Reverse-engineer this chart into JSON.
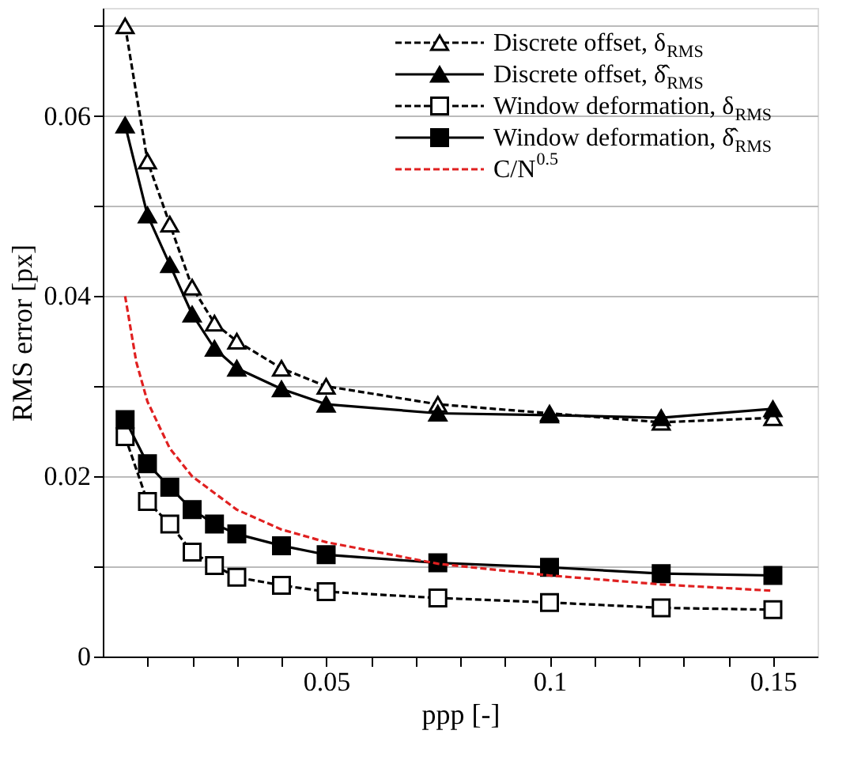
{
  "chart_data": {
    "type": "line",
    "xlabel": "ppp [-]",
    "ylabel": "RMS error [px]",
    "x": [
      0.005,
      0.01,
      0.015,
      0.02,
      0.025,
      0.03,
      0.04,
      0.05,
      0.075,
      0.1,
      0.125,
      0.15
    ],
    "series": [
      {
        "name": "Discrete offset, δ$_{RMS}$",
        "color": "#000000",
        "marker": "triangle",
        "line_style": "dashed",
        "values": [
          0.07,
          0.055,
          0.048,
          0.041,
          0.037,
          0.035,
          0.032,
          0.03,
          0.028,
          0.027,
          0.026,
          0.0265
        ]
      },
      {
        "name": "Discrete offset, δ̂$_{RMS}$",
        "color": "#000000",
        "marker": "triangle",
        "line_style": "solid",
        "values": [
          0.059,
          0.049,
          0.0435,
          0.038,
          0.0342,
          0.032,
          0.0297,
          0.028,
          0.027,
          0.0268,
          0.0265,
          0.0275
        ]
      },
      {
        "name": "Window deformation, δ$_{RMS}$",
        "color": "#000000",
        "marker": "square",
        "line_style": "dashed",
        "values": [
          0.0244,
          0.0172,
          0.0147,
          0.0116,
          0.0101,
          0.0088,
          0.0079,
          0.0072,
          0.0065,
          0.006,
          0.0054,
          0.0052
        ]
      },
      {
        "name": "Window deformation, δ̂$_{RMS}$",
        "color": "#000000",
        "marker": "square",
        "line_style": "solid",
        "values": [
          0.0263,
          0.0214,
          0.0188,
          0.0163,
          0.0147,
          0.0136,
          0.0123,
          0.0113,
          0.0104,
          0.0099,
          0.0092,
          0.009
        ]
      },
      {
        "name": "C/N$^{0.5}$",
        "color": "#e02020",
        "marker": "none",
        "line_style": "dashed",
        "x": [
          0.005,
          0.0075,
          0.01,
          0.015,
          0.02,
          0.03,
          0.04,
          0.05,
          0.075,
          0.1,
          0.125,
          0.15
        ],
        "values": [
          0.04,
          0.0327,
          0.0283,
          0.0231,
          0.02,
          0.0163,
          0.0141,
          0.0127,
          0.0103,
          0.009,
          0.008,
          0.0073
        ]
      }
    ],
    "xlim": [
      0,
      0.16
    ],
    "xticks": [
      {
        "value": 0.01,
        "label": null
      },
      {
        "value": 0.02,
        "label": null
      },
      {
        "value": 0.03,
        "label": null
      },
      {
        "value": 0.04,
        "label": null
      },
      0.05,
      {
        "value": 0.06,
        "label": null
      },
      {
        "value": 0.07,
        "label": null
      },
      {
        "value": 0.08,
        "label": null
      },
      {
        "value": 0.09,
        "label": null
      },
      0.1,
      {
        "value": 0.11,
        "label": null
      },
      {
        "value": 0.12,
        "label": null
      },
      {
        "value": 0.13,
        "label": null
      },
      {
        "value": 0.14,
        "label": null
      },
      0.15
    ],
    "ylim": [
      0,
      0.072
    ],
    "yticks": [
      0,
      {
        "value": 0.01,
        "label": null
      },
      0.02,
      {
        "value": 0.03,
        "label": null
      },
      0.04,
      {
        "value": 0.05,
        "label": null
      },
      0.06,
      {
        "value": 0.07,
        "label": null
      }
    ],
    "grid": "y",
    "legend": "top right"
  }
}
